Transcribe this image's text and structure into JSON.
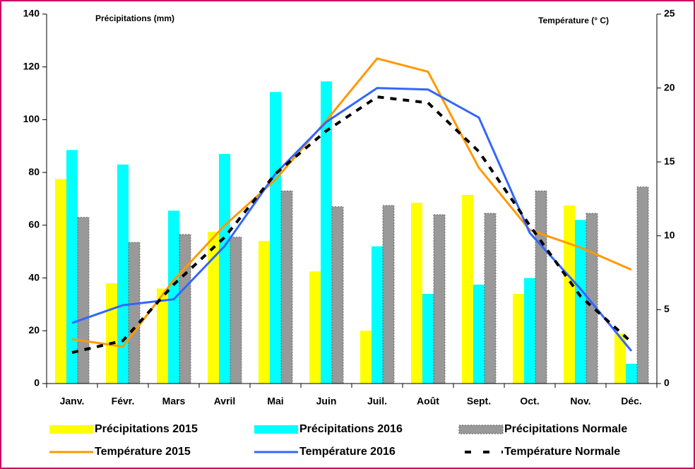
{
  "chart_data": {
    "type": "bar",
    "ylabel": "Précipitations (mm)",
    "y2label": "Température (° C)",
    "categories": [
      "Janv.",
      "Févr.",
      "Mars",
      "Avril",
      "Mai",
      "Juin",
      "Juil.",
      "Août",
      "Sept.",
      "Oct.",
      "Nov.",
      "Déc."
    ],
    "ylim": [
      0,
      140
    ],
    "yticks": [
      0,
      20,
      40,
      60,
      80,
      100,
      120,
      140
    ],
    "y2lim": [
      0,
      25
    ],
    "y2ticks": [
      0,
      5,
      10,
      15,
      20,
      25
    ],
    "series": [
      {
        "name": "Précipitations 2015",
        "type": "bar",
        "color": "#ffff00",
        "values": [
          77.5,
          38,
          36,
          57.5,
          54,
          42.5,
          20,
          68.5,
          71.5,
          34,
          67.5,
          19
        ]
      },
      {
        "name": "Précipitations 2016",
        "type": "bar",
        "color": "#00ffff",
        "values": [
          88.5,
          83,
          65.5,
          87,
          110.5,
          114.5,
          52,
          34,
          37.5,
          40,
          62,
          7.5
        ]
      },
      {
        "name": "Précipitations Normale",
        "type": "bar",
        "color": "#999999",
        "values": [
          63,
          53.5,
          56.5,
          55.5,
          73,
          67,
          67.5,
          64,
          64.5,
          73,
          64.5,
          74.5
        ]
      },
      {
        "name": "Température 2015",
        "type": "line",
        "axis": "y2",
        "color": "#ff9900",
        "values": [
          3.0,
          2.5,
          7.0,
          10.7,
          13.8,
          17.8,
          22.0,
          21.1,
          14.6,
          10.4,
          9.2,
          7.7
        ]
      },
      {
        "name": "Température 2016",
        "type": "line",
        "axis": "y2",
        "color": "#3366ff",
        "values": [
          4.1,
          5.3,
          5.7,
          9.3,
          14.2,
          17.7,
          20.0,
          19.9,
          18.0,
          10.2,
          6.4,
          2.2
        ]
      },
      {
        "name": "Température Normale",
        "type": "line",
        "axis": "y2",
        "color": "#000000",
        "dashed": true,
        "values": [
          2.1,
          2.9,
          6.7,
          9.9,
          14.2,
          17.1,
          19.4,
          19.0,
          15.7,
          10.7,
          5.9,
          2.8
        ]
      }
    ]
  }
}
